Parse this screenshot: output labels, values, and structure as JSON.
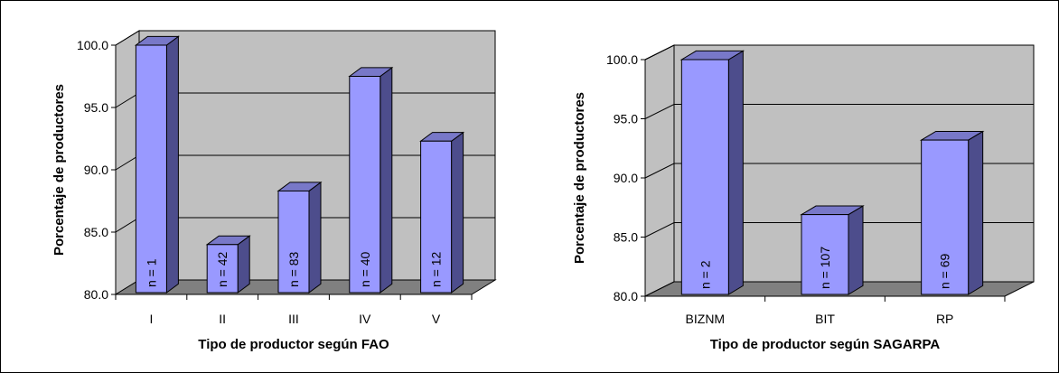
{
  "chart_data": [
    {
      "type": "bar",
      "title": "",
      "xlabel": "Tipo de productor según FAO",
      "ylabel": "Porcentaje de productores",
      "ylim": [
        80,
        100
      ],
      "yticks": [
        "80.0",
        "85.0",
        "90.0",
        "95.0",
        "100.0"
      ],
      "categories": [
        "I",
        "II",
        "III",
        "IV",
        "V"
      ],
      "values": [
        100.0,
        84.0,
        88.3,
        97.5,
        92.3
      ],
      "bar_labels": [
        "n = 1",
        "n = 42",
        "n = 83",
        "n = 40",
        "n = 12"
      ],
      "grid": true,
      "three_d": true
    },
    {
      "type": "bar",
      "title": "",
      "xlabel": "Tipo de productor según SAGARPA",
      "ylabel": "Porcentaje de productores",
      "ylim": [
        80,
        100
      ],
      "yticks": [
        "80.0",
        "85.0",
        "90.0",
        "95.0",
        "100.0"
      ],
      "categories": [
        "BIZNM",
        "BIT",
        "RP"
      ],
      "values": [
        100.0,
        86.9,
        93.2
      ],
      "bar_labels": [
        "n = 2",
        "n = 107",
        "n = 69"
      ],
      "grid": true,
      "three_d": true
    }
  ],
  "colors": {
    "bar_front": "#9999ff",
    "bar_side": "#4d4d8c",
    "bar_top": "#7878c8",
    "wall": "#c0c0c0",
    "floor": "#808080"
  }
}
